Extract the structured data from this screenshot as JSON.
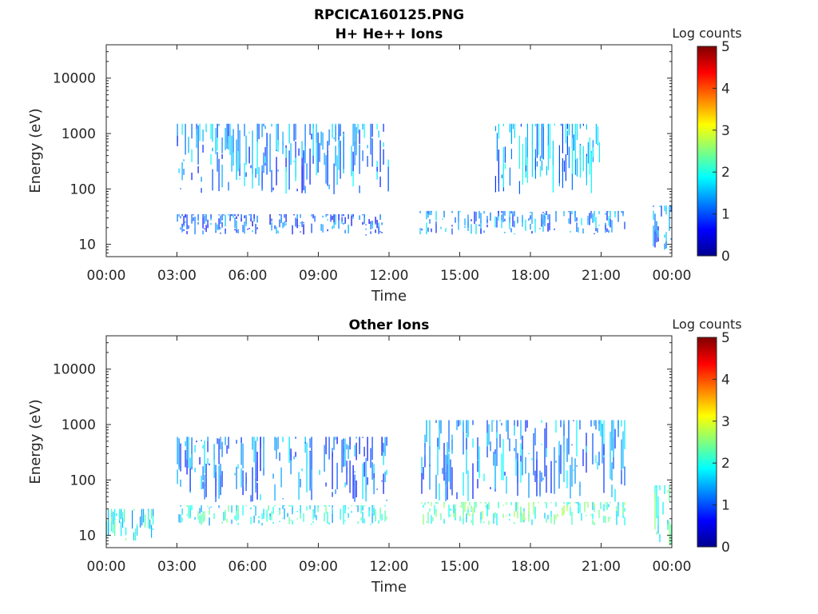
{
  "figure": {
    "title": "RPCICA160125.PNG"
  },
  "chart_data": [
    {
      "type": "heatmap",
      "title": "H+ He++ Ions",
      "xlabel": "Time",
      "ylabel": "Energy (eV)",
      "x_ticks": [
        "00:00",
        "03:00",
        "06:00",
        "09:00",
        "12:00",
        "15:00",
        "18:00",
        "21:00",
        "00:00"
      ],
      "x_range_hours": [
        0,
        24
      ],
      "y_scale": "log",
      "y_ticks": [
        "10",
        "100",
        "1000",
        "10000"
      ],
      "y_range": [
        6,
        40000
      ],
      "colorbar": {
        "label": "Log counts",
        "ticks": [
          "0",
          "1",
          "2",
          "3",
          "4",
          "5"
        ],
        "range": [
          0,
          5
        ],
        "colormap": "jet"
      },
      "activity_blocks": [
        {
          "t_start": 0.0,
          "t_end": 3.0,
          "e_low": 6,
          "e_high": 40000,
          "level": 0,
          "note": "no counts"
        },
        {
          "t_start": 3.0,
          "t_end": 12.0,
          "e_low": 15,
          "e_high": 35,
          "level": 1.0
        },
        {
          "t_start": 3.0,
          "t_end": 12.0,
          "e_low": 80,
          "e_high": 1500,
          "level": 1.3
        },
        {
          "t_start": 13.3,
          "t_end": 22.0,
          "e_low": 15,
          "e_high": 40,
          "level": 1.2
        },
        {
          "t_start": 16.5,
          "t_end": 21.0,
          "e_low": 80,
          "e_high": 1500,
          "level": 1.4
        },
        {
          "t_start": 23.2,
          "t_end": 24.0,
          "e_low": 8,
          "e_high": 50,
          "level": 1.1
        }
      ]
    },
    {
      "type": "heatmap",
      "title": "Other Ions",
      "xlabel": "Time",
      "ylabel": "Energy (eV)",
      "x_ticks": [
        "00:00",
        "03:00",
        "06:00",
        "09:00",
        "12:00",
        "15:00",
        "18:00",
        "21:00",
        "00:00"
      ],
      "x_range_hours": [
        0,
        24
      ],
      "y_scale": "log",
      "y_ticks": [
        "10",
        "100",
        "1000",
        "10000"
      ],
      "y_range": [
        6,
        40000
      ],
      "colorbar": {
        "label": "Log counts",
        "ticks": [
          "0",
          "1",
          "2",
          "3",
          "4",
          "5"
        ],
        "range": [
          0,
          5
        ],
        "colormap": "jet"
      },
      "activity_blocks": [
        {
          "t_start": 0.0,
          "t_end": 2.0,
          "e_low": 8,
          "e_high": 30,
          "level": 1.9
        },
        {
          "t_start": 3.0,
          "t_end": 12.0,
          "e_low": 15,
          "e_high": 35,
          "level": 1.9
        },
        {
          "t_start": 3.0,
          "t_end": 12.0,
          "e_low": 40,
          "e_high": 600,
          "level": 1.2
        },
        {
          "t_start": 13.3,
          "t_end": 22.0,
          "e_low": 15,
          "e_high": 40,
          "level": 2.2
        },
        {
          "t_start": 13.3,
          "t_end": 22.0,
          "e_low": 40,
          "e_high": 1200,
          "level": 1.3
        },
        {
          "t_start": 23.2,
          "t_end": 24.0,
          "e_low": 6,
          "e_high": 80,
          "level": 2.0
        }
      ]
    }
  ]
}
